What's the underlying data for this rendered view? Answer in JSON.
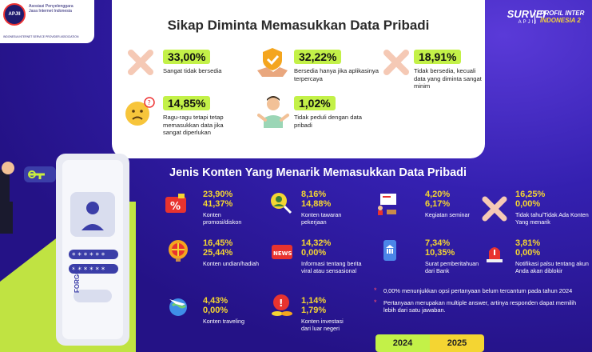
{
  "header": {
    "org_short": "APJII",
    "org_name": "Asosiasi Penyelenggara Jasa Internet Indonesia",
    "org_tagline": "INDONESIA INTERNET SERVICE PROVIDER ASSOCIATION",
    "survei": "SURVEI",
    "survei_sub": "APJII",
    "profil_line1": "PROFIL INTER",
    "profil_line2": "INDONESIA 2"
  },
  "section1": {
    "title": "Sikap Diminta Memasukkan Data Pribadi",
    "stats": [
      {
        "pct": "33,00%",
        "desc": "Sangat tidak bersedia",
        "icon": "cross-icon"
      },
      {
        "pct": "32,22%",
        "desc": "Bersedia hanya jika aplikasinya terpercaya",
        "icon": "handshake-shield-icon"
      },
      {
        "pct": "18,91%",
        "desc": "Tidak bersedia, kecuali data yang diminta sangat minim",
        "icon": "cross-icon"
      },
      {
        "pct": "14,85%",
        "desc": "Ragu-ragu tetapi tetap memasukkan data jika sangat diperlukan",
        "icon": "worried-face-icon"
      },
      {
        "pct": "1,02%",
        "desc": "Tidak peduli dengan data pribadi",
        "icon": "shrug-person-icon"
      }
    ]
  },
  "section2": {
    "title": "Jenis Konten Yang Menarik Memasukkan Data Pribadi",
    "items": [
      {
        "v2024": "23,90%",
        "v2025": "41,37%",
        "label": "Konten promosi/diskon",
        "icon": "discount-tag-icon"
      },
      {
        "v2024": "8,16%",
        "v2025": "14,88%",
        "label": "Konten tawaran pekerjaan",
        "icon": "job-search-icon"
      },
      {
        "v2024": "4,20%",
        "v2025": "6,17%",
        "label": "Kegiatan seminar",
        "icon": "seminar-icon"
      },
      {
        "v2024": "16,25%",
        "v2025": "0,00%",
        "label": "Tidak tahu/Tidak Ada Konten Yang menarik",
        "icon": "cross-icon"
      },
      {
        "v2024": "16,45%",
        "v2025": "25,44%",
        "label": "Konten undian/hadiah",
        "icon": "prize-wheel-icon"
      },
      {
        "v2024": "14,32%",
        "v2025": "0,00%",
        "label": "Informasi tentang berita viral atau sensasional",
        "icon": "news-icon"
      },
      {
        "v2024": "7,34%",
        "v2025": "10,35%",
        "label": "Surat pemberitahuan dari Bank",
        "icon": "bank-phone-icon"
      },
      {
        "v2024": "3,81%",
        "v2025": "0,00%",
        "label": "Notifikasi palsu tentang akun Anda akan diblokir",
        "icon": "alarm-icon"
      },
      {
        "v2024": "4,43%",
        "v2025": "0,00%",
        "label": "Konten traveling",
        "icon": "plane-globe-icon"
      },
      {
        "v2024": "1,14%",
        "v2025": "1,79%",
        "label": "Konten investasi dari luar negeri",
        "icon": "investment-icon"
      }
    ],
    "notes": [
      "0,00% menunjukkan opsi pertanyaan belum tercantum pada tahun 2024",
      "Pertanyaan merupakan multiple answer, artinya responden dapat memilih lebih dari satu jawaban."
    ],
    "legend": [
      "2024",
      "2025"
    ]
  },
  "illustration": {
    "forgot_text": "FORGOT"
  },
  "colors": {
    "background": "#2a1a8c",
    "highlight_green": "#c3f148",
    "highlight_yellow": "#f4d532"
  }
}
